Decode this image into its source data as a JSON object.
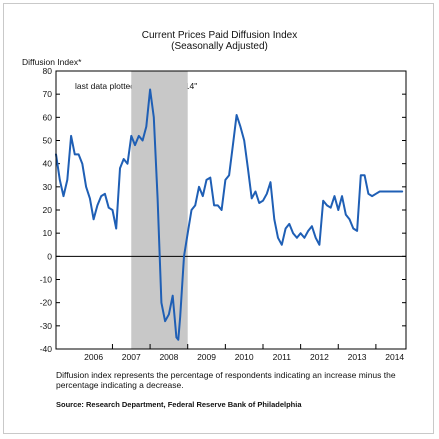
{
  "chart_data": {
    "type": "line",
    "title": "Current Prices Paid Diffusion Index",
    "subtitle": "(Seasonally Adjusted)",
    "ylabel": "Diffusion Index*",
    "xlabel": "",
    "annotation": "last data plotted: \"October 2014\"",
    "ylim": [
      -40,
      80
    ],
    "yticks": [
      -40,
      -30,
      -20,
      -10,
      0,
      10,
      20,
      30,
      40,
      50,
      60,
      70,
      80
    ],
    "xlim": [
      2005.5,
      2014.8
    ],
    "xtick_labels": [
      "2006",
      "2007",
      "2008",
      "2009",
      "2010",
      "2011",
      "2012",
      "2013",
      "2014"
    ],
    "grid": false,
    "line_color": "#1f5fb5",
    "recession_color": "#c8c8c8",
    "recession": [
      2007.5,
      2009.0
    ],
    "x": [
      2005.5,
      2005.6,
      2005.7,
      2005.8,
      2005.9,
      2006.0,
      2006.1,
      2006.2,
      2006.3,
      2006.4,
      2006.5,
      2006.6,
      2006.7,
      2006.8,
      2006.9,
      2007.0,
      2007.1,
      2007.2,
      2007.3,
      2007.4,
      2007.5,
      2007.6,
      2007.7,
      2007.8,
      2007.9,
      2008.0,
      2008.1,
      2008.2,
      2008.3,
      2008.4,
      2008.5,
      2008.6,
      2008.7,
      2008.75,
      2008.8,
      2008.9,
      2009.0,
      2009.1,
      2009.2,
      2009.3,
      2009.4,
      2009.5,
      2009.6,
      2009.7,
      2009.8,
      2009.9,
      2010.0,
      2010.1,
      2010.2,
      2010.3,
      2010.4,
      2010.5,
      2010.6,
      2010.7,
      2010.8,
      2010.9,
      2011.0,
      2011.1,
      2011.2,
      2011.3,
      2011.4,
      2011.5,
      2011.6,
      2011.7,
      2011.8,
      2011.9,
      2012.0,
      2012.1,
      2012.2,
      2012.3,
      2012.4,
      2012.5,
      2012.6,
      2012.7,
      2012.8,
      2012.9,
      2013.0,
      2013.1,
      2013.2,
      2013.3,
      2013.4,
      2013.5,
      2013.6,
      2013.7,
      2013.8,
      2013.9,
      2014.0,
      2014.1,
      2014.2,
      2014.3,
      2014.4,
      2014.5,
      2014.6,
      2014.7
    ],
    "values": [
      44,
      33,
      26,
      33,
      52,
      44,
      44,
      40,
      30,
      25,
      16,
      22,
      26,
      27,
      21,
      20,
      12,
      38,
      42,
      40,
      52,
      48,
      52,
      50,
      56,
      72,
      60,
      25,
      -20,
      -28,
      -25,
      -17,
      -35,
      -36,
      -26,
      0,
      10,
      20,
      22,
      30,
      26,
      33,
      34,
      22,
      22,
      20,
      33,
      35,
      48,
      61,
      56,
      50,
      38,
      25,
      28,
      23,
      24,
      27,
      32,
      16,
      8,
      5,
      12,
      14,
      10,
      8,
      10,
      8,
      11,
      13,
      8,
      5,
      24,
      22,
      21,
      26,
      20,
      26,
      18,
      16,
      12,
      11,
      35,
      35,
      27,
      26,
      27,
      28,
      28,
      28,
      28,
      28,
      28,
      28
    ],
    "footnote": "Diffusion index represents the percentage of respondents indicating an increase minus the percentage indicating a decrease.",
    "source": "Source: Research Department, Federal Reserve Bank of Philadelphia"
  }
}
